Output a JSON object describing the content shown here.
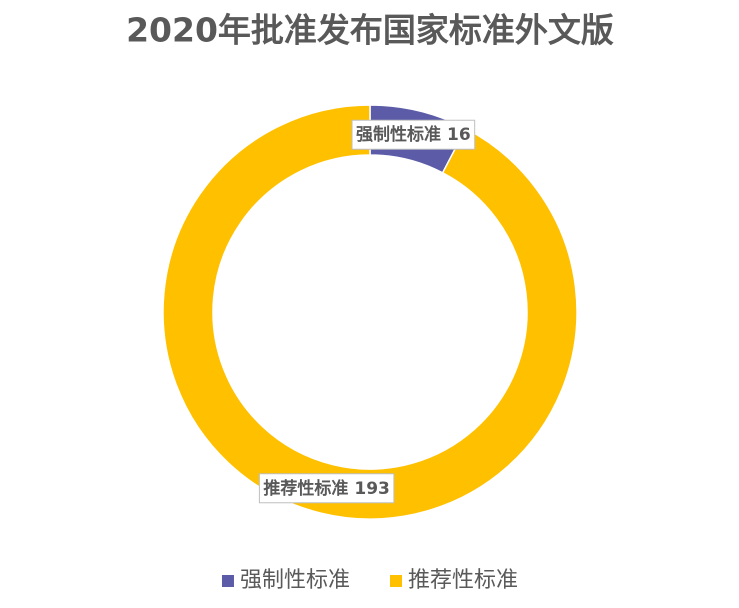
{
  "chart_data": {
    "type": "donut",
    "title": "2020年批准发布国家标准外文版",
    "categories": [
      "强制性标准",
      "推荐性标准"
    ],
    "values": [
      16,
      193
    ],
    "colors": [
      "#5b5ba8",
      "#ffc000"
    ],
    "legend": "bottom"
  }
}
